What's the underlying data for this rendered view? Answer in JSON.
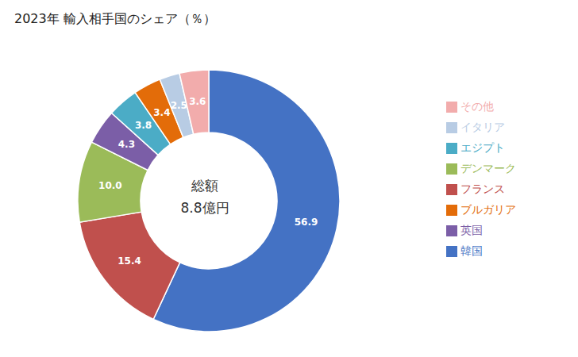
{
  "chart_data": {
    "type": "pie",
    "title": "2023年 輸入相手国のシェア（％）",
    "annotations": [
      "総額",
      "8.8億円"
    ],
    "categories": [
      "韓国",
      "フランス",
      "デンマーク",
      "英国",
      "エジプト",
      "ブルガリア",
      "イタリア",
      "その他"
    ],
    "values": [
      56.9,
      15.4,
      10.0,
      4.3,
      3.8,
      3.4,
      2.5,
      3.6
    ],
    "value_labels": [
      "56.9",
      "15.4",
      "10.0",
      "4.3",
      "3.8",
      "3.4",
      "2.5",
      "3.6"
    ],
    "colors": [
      "#4472C4",
      "#C0504D",
      "#9BBB59",
      "#7B5EA7",
      "#4BACC6",
      "#E36C09",
      "#B8CCE4",
      "#F2ACAC"
    ],
    "data_labels": true,
    "legend": "right"
  }
}
